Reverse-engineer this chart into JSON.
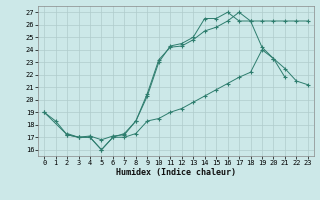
{
  "xlabel": "Humidex (Indice chaleur)",
  "ylabel": "",
  "bg_color": "#cce8e8",
  "grid_color": "#b0cccc",
  "line_color": "#2e7d6e",
  "xlim": [
    -0.5,
    23.5
  ],
  "ylim": [
    15.5,
    27.5
  ],
  "yticks": [
    16,
    17,
    18,
    19,
    20,
    21,
    22,
    23,
    24,
    25,
    26,
    27
  ],
  "xticks": [
    0,
    1,
    2,
    3,
    4,
    5,
    6,
    7,
    8,
    9,
    10,
    11,
    12,
    13,
    14,
    15,
    16,
    17,
    18,
    19,
    20,
    21,
    22,
    23
  ],
  "line1_x": [
    0,
    1,
    2,
    3,
    4,
    5,
    6,
    7,
    8,
    9,
    10,
    11,
    12,
    13,
    14,
    15,
    16,
    17,
    18,
    19,
    20,
    21
  ],
  "line1_y": [
    19.0,
    18.3,
    17.2,
    17.0,
    17.1,
    16.8,
    17.1,
    17.2,
    18.3,
    20.5,
    23.2,
    24.2,
    24.3,
    24.8,
    25.5,
    25.8,
    26.3,
    27.0,
    26.3,
    24.2,
    23.3,
    21.8
  ],
  "line2_x": [
    2,
    3,
    4,
    5,
    6,
    7,
    8,
    9,
    10,
    11,
    12,
    13,
    14,
    15,
    16,
    17,
    18,
    19,
    20,
    21,
    22,
    23
  ],
  "line2_y": [
    17.3,
    17.0,
    17.0,
    16.0,
    17.0,
    17.0,
    17.3,
    18.3,
    18.5,
    19.0,
    19.3,
    19.8,
    20.3,
    20.8,
    21.3,
    21.8,
    22.2,
    24.0,
    23.3,
    22.5,
    21.5,
    21.2
  ],
  "line3_x": [
    0,
    2,
    3,
    4,
    5,
    6,
    7,
    8,
    9,
    10,
    11,
    12,
    13,
    14,
    15,
    16,
    17,
    18,
    19,
    20,
    21,
    22,
    23
  ],
  "line3_y": [
    19.0,
    17.2,
    17.0,
    17.0,
    16.0,
    17.0,
    17.3,
    18.3,
    20.3,
    23.0,
    24.3,
    24.5,
    25.0,
    26.5,
    26.5,
    27.0,
    26.3,
    26.3,
    26.3,
    26.3,
    26.3,
    26.3,
    26.3
  ]
}
